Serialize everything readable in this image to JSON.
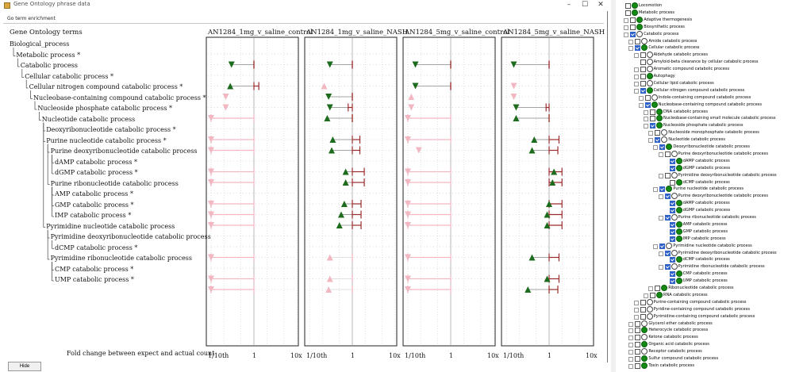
{
  "window": {
    "title": "Gene Ontology phrase data",
    "buttons": {
      "minimize": "–",
      "maximize": "☐",
      "close": "✕"
    },
    "tab_label": "Go term enrichment",
    "hide_label": "Hide"
  },
  "terms_header": "Gene Ontology terms",
  "terms": [
    {
      "label": "Biological_process",
      "level": 0
    },
    {
      "label": "Metabolic process *",
      "level": 1
    },
    {
      "label": "Catabolic process",
      "level": 2
    },
    {
      "label": "Cellular catabolic process *",
      "level": 3
    },
    {
      "label": "Cellular nitrogen compound catabolic process *",
      "level": 4
    },
    {
      "label": "Nucleobase-containing compound catabolic process *",
      "level": 5
    },
    {
      "label": "Nucleoside phosphate catabolic process *",
      "level": 6
    },
    {
      "label": "Nucleotide catabolic process",
      "level": 7
    },
    {
      "label": "Deoxyribonucleotide catabolic process *",
      "level": 8
    },
    {
      "label": "Purine nucleotide catabolic process *",
      "level": 8
    },
    {
      "label": "Purine deoxyribonucleotide catabolic process",
      "level": 9
    },
    {
      "label": "dAMP catabolic process *",
      "level": 10
    },
    {
      "label": "dGMP catabolic process *",
      "level": 10
    },
    {
      "label": "Purine ribonucleotide catabolic process",
      "level": 9
    },
    {
      "label": "AMP catabolic process *",
      "level": 10
    },
    {
      "label": "GMP catabolic process *",
      "level": 10
    },
    {
      "label": "IMP catabolic process *",
      "level": 10
    },
    {
      "label": "Pyrimidine nucleotide catabolic process",
      "level": 8
    },
    {
      "label": "Pyrimidine deoxyribonucleotide catabolic process",
      "level": 9
    },
    {
      "label": "dCMP catabolic process *",
      "level": 10
    },
    {
      "label": "Pyrimidine ribonucleotide catabolic process",
      "level": 9
    },
    {
      "label": "CMP catabolic process *",
      "level": 10
    },
    {
      "label": "UMP catabolic process *",
      "level": 10
    }
  ],
  "footer_label": "Fold change between expect and actual count",
  "axis_ticks": [
    "1/10th",
    "1",
    "10x"
  ],
  "colors": {
    "up": "#1d6b1d",
    "down": "#1d6b1d",
    "faint": "#f2b8c2",
    "whisker": "#9a2b2b",
    "whisker_faint": "#f2b8c2"
  },
  "panels": [
    {
      "title": "AN1284_1mg_v_saline_control",
      "rows": [
        {
          "row": 1,
          "dir": "down",
          "sig": true,
          "est": 0.3,
          "lo": 1.0,
          "hi": 1.0
        },
        {
          "row": 3,
          "dir": "up",
          "sig": true,
          "est": 0.28,
          "lo": 1.0,
          "hi": 1.3
        },
        {
          "row": 4,
          "dir": "down",
          "sig": false,
          "est": 0.22
        },
        {
          "row": 5,
          "dir": "down",
          "sig": false,
          "est": 0.22
        },
        {
          "row": 6,
          "dir": "down",
          "sig": false,
          "est": 0.1,
          "lo": 0.1,
          "hi": 1.0
        },
        {
          "row": 8,
          "dir": "down",
          "sig": false,
          "est": 0.1,
          "lo": 0.1,
          "hi": 1.0
        },
        {
          "row": 9,
          "dir": "down",
          "sig": false,
          "est": 0.1,
          "lo": 0.1,
          "hi": 1.0
        },
        {
          "row": 11,
          "dir": "down",
          "sig": false,
          "est": 0.1,
          "lo": 0.1,
          "hi": 1.0
        },
        {
          "row": 12,
          "dir": "down",
          "sig": false,
          "est": 0.1,
          "lo": 0.1,
          "hi": 1.0
        },
        {
          "row": 14,
          "dir": "down",
          "sig": false,
          "est": 0.1,
          "lo": 0.1,
          "hi": 1.0
        },
        {
          "row": 15,
          "dir": "down",
          "sig": false,
          "est": 0.1,
          "lo": 0.1,
          "hi": 1.0
        },
        {
          "row": 16,
          "dir": "down",
          "sig": false,
          "est": 0.1,
          "lo": 0.1,
          "hi": 1.0
        },
        {
          "row": 19,
          "dir": "down",
          "sig": false,
          "est": 0.1,
          "lo": 0.1,
          "hi": 1.0
        },
        {
          "row": 21,
          "dir": "down",
          "sig": false,
          "est": 0.1,
          "lo": 0.1,
          "hi": 1.0
        },
        {
          "row": 22,
          "dir": "down",
          "sig": false,
          "est": 0.1,
          "lo": 0.1,
          "hi": 1.0
        }
      ]
    },
    {
      "title": "AN1284_1mg_v_saline_NASH",
      "rows": [
        {
          "row": 1,
          "dir": "down",
          "sig": true,
          "est": 0.3,
          "lo": 1.0,
          "hi": 1.0
        },
        {
          "row": 3,
          "dir": "up",
          "sig": false,
          "est": 0.22
        },
        {
          "row": 4,
          "dir": "down",
          "sig": true,
          "est": 0.28,
          "lo": 1.0,
          "hi": 1.0
        },
        {
          "row": 5,
          "dir": "down",
          "sig": true,
          "est": 0.3,
          "lo": 0.8,
          "hi": 1.0
        },
        {
          "row": 6,
          "dir": "up",
          "sig": true,
          "est": 0.26,
          "lo": 1.0,
          "hi": 1.0
        },
        {
          "row": 8,
          "dir": "up",
          "sig": true,
          "est": 0.35,
          "lo": 1.0,
          "hi": 1.5
        },
        {
          "row": 9,
          "dir": "up",
          "sig": true,
          "est": 0.33,
          "lo": 1.0,
          "hi": 1.5
        },
        {
          "row": 11,
          "dir": "up",
          "sig": true,
          "est": 0.7,
          "lo": 1.0,
          "hi": 1.9
        },
        {
          "row": 12,
          "dir": "up",
          "sig": true,
          "est": 0.7,
          "lo": 1.0,
          "hi": 1.9
        },
        {
          "row": 14,
          "dir": "up",
          "sig": true,
          "est": 0.65,
          "lo": 1.0,
          "hi": 1.6
        },
        {
          "row": 15,
          "dir": "up",
          "sig": true,
          "est": 0.55,
          "lo": 1.0,
          "hi": 1.6
        },
        {
          "row": 16,
          "dir": "up",
          "sig": true,
          "est": 0.5,
          "lo": 1.0,
          "hi": 1.6
        },
        {
          "row": 19,
          "dir": "up",
          "sig": false,
          "est": 0.3,
          "lo": 1.0,
          "hi": 1.0
        },
        {
          "row": 21,
          "dir": "up",
          "sig": false,
          "est": 0.3,
          "lo": 1.0,
          "hi": 1.0
        },
        {
          "row": 22,
          "dir": "up",
          "sig": false,
          "est": 0.28,
          "lo": 1.0,
          "hi": 1.0
        }
      ]
    },
    {
      "title": "AN1284_5mg_v_saline_control",
      "rows": [
        {
          "row": 1,
          "dir": "down",
          "sig": true,
          "est": 0.15,
          "lo": 1.0,
          "hi": 1.0
        },
        {
          "row": 3,
          "dir": "down",
          "sig": true,
          "est": 0.15,
          "lo": 1.0,
          "hi": 1.0
        },
        {
          "row": 4,
          "dir": "up",
          "sig": false,
          "est": 0.12
        },
        {
          "row": 5,
          "dir": "down",
          "sig": false,
          "est": 0.12
        },
        {
          "row": 6,
          "dir": "down",
          "sig": false,
          "est": 0.1,
          "lo": 0.1,
          "hi": 1.0
        },
        {
          "row": 8,
          "dir": "down",
          "sig": false,
          "est": 0.1,
          "lo": 0.1,
          "hi": 1.0
        },
        {
          "row": 9,
          "dir": "down",
          "sig": false,
          "est": 0.18
        },
        {
          "row": 11,
          "dir": "down",
          "sig": false,
          "est": 0.1,
          "lo": 0.1,
          "hi": 1.0
        },
        {
          "row": 12,
          "dir": "down",
          "sig": false,
          "est": 0.1,
          "lo": 0.1,
          "hi": 1.0
        },
        {
          "row": 14,
          "dir": "down",
          "sig": false,
          "est": 0.1,
          "lo": 0.1,
          "hi": 1.0
        },
        {
          "row": 15,
          "dir": "down",
          "sig": false,
          "est": 0.1,
          "lo": 0.1,
          "hi": 1.0
        },
        {
          "row": 16,
          "dir": "down",
          "sig": false,
          "est": 0.1,
          "lo": 0.1,
          "hi": 1.0
        },
        {
          "row": 19,
          "dir": "down",
          "sig": false,
          "est": 0.1,
          "lo": 0.1,
          "hi": 1.0
        },
        {
          "row": 21,
          "dir": "down",
          "sig": false,
          "est": 0.1,
          "lo": 0.1,
          "hi": 1.0
        },
        {
          "row": 22,
          "dir": "down",
          "sig": false,
          "est": 0.1,
          "lo": 0.1,
          "hi": 1.0
        }
      ]
    },
    {
      "title": "AN1284_5mg_v_saline_NASH",
      "rows": [
        {
          "row": 1,
          "dir": "down",
          "sig": true,
          "est": 0.15,
          "lo": 1.0,
          "hi": 1.0
        },
        {
          "row": 3,
          "dir": "down",
          "sig": false,
          "est": 0.15
        },
        {
          "row": 4,
          "dir": "down",
          "sig": false,
          "est": 0.15
        },
        {
          "row": 5,
          "dir": "down",
          "sig": true,
          "est": 0.17,
          "lo": 0.85,
          "hi": 1.0
        },
        {
          "row": 6,
          "dir": "up",
          "sig": true,
          "est": 0.17,
          "lo": 1.0,
          "hi": 1.0
        },
        {
          "row": 8,
          "dir": "up",
          "sig": true,
          "est": 0.45,
          "lo": 1.0,
          "hi": 1.7
        },
        {
          "row": 9,
          "dir": "up",
          "sig": true,
          "est": 0.4,
          "lo": 1.0,
          "hi": 1.6
        },
        {
          "row": 11,
          "dir": "up",
          "sig": true,
          "est": 1.3,
          "lo": 1.0,
          "hi": 2.0
        },
        {
          "row": 12,
          "dir": "up",
          "sig": true,
          "est": 1.2,
          "lo": 1.0,
          "hi": 2.0
        },
        {
          "row": 14,
          "dir": "up",
          "sig": true,
          "est": 1.0,
          "lo": 1.0,
          "hi": 2.0
        },
        {
          "row": 15,
          "dir": "up",
          "sig": true,
          "est": 0.9,
          "lo": 1.0,
          "hi": 2.0
        },
        {
          "row": 16,
          "dir": "up",
          "sig": true,
          "est": 0.9,
          "lo": 1.0,
          "hi": 2.0
        },
        {
          "row": 19,
          "dir": "up",
          "sig": true,
          "est": 0.4,
          "lo": 1.0,
          "hi": 1.7
        },
        {
          "row": 21,
          "dir": "up",
          "sig": true,
          "est": 0.9,
          "lo": 1.0,
          "hi": 1.7
        },
        {
          "row": 22,
          "dir": "up",
          "sig": true,
          "est": 0.32,
          "lo": 1.0,
          "hi": 1.6
        }
      ]
    }
  ],
  "tree": [
    {
      "label": "Locomotion",
      "level": 0,
      "checked": false,
      "filled": true,
      "expander": ""
    },
    {
      "label": "Metabolic process",
      "level": 0,
      "checked": false,
      "filled": true,
      "expander": ""
    },
    {
      "label": "Adaptive thermogenesis",
      "level": 1,
      "checked": false,
      "filled": true,
      "expander": "+"
    },
    {
      "label": "Biosynthetic process",
      "level": 1,
      "checked": false,
      "filled": true,
      "expander": "+"
    },
    {
      "label": "Catabolic process",
      "level": 1,
      "checked": true,
      "filled": false,
      "expander": "-"
    },
    {
      "label": "Amide catabolic process",
      "level": 2,
      "checked": false,
      "filled": false,
      "expander": "+"
    },
    {
      "label": "Cellular catabolic process",
      "level": 2,
      "checked": true,
      "filled": true,
      "expander": "-"
    },
    {
      "label": "Aldehyde catabolic process",
      "level": 3,
      "checked": false,
      "filled": false,
      "expander": "+"
    },
    {
      "label": "Amyloid-beta clearance by cellular catabolic process",
      "level": 3,
      "checked": false,
      "filled": false,
      "expander": ""
    },
    {
      "label": "Aromatic compound catabolic process",
      "level": 3,
      "checked": false,
      "filled": false,
      "expander": "+"
    },
    {
      "label": "Autophagy",
      "level": 3,
      "checked": false,
      "filled": true,
      "expander": "+"
    },
    {
      "label": "Cellular lipid catabolic process",
      "level": 3,
      "checked": false,
      "filled": false,
      "expander": "+"
    },
    {
      "label": "Cellular nitrogen compound catabolic process",
      "level": 3,
      "checked": true,
      "filled": true,
      "expander": "-"
    },
    {
      "label": "Indole-containing compound catabolic process",
      "level": 4,
      "checked": false,
      "filled": false,
      "expander": "+"
    },
    {
      "label": "Nucleobase-containing compound catabolic process",
      "level": 4,
      "checked": true,
      "filled": true,
      "expander": "-"
    },
    {
      "label": "DNA catabolic process",
      "level": 5,
      "checked": false,
      "filled": true,
      "expander": "+"
    },
    {
      "label": "Nucleobase-containing small molecule catabolic process",
      "level": 5,
      "checked": false,
      "filled": true,
      "expander": "+"
    },
    {
      "label": "Nucleoside phosphate catabolic process",
      "level": 5,
      "checked": true,
      "filled": true,
      "expander": "-"
    },
    {
      "label": "Nucleoside monophosphate catabolic process",
      "level": 6,
      "checked": false,
      "filled": false,
      "expander": "+"
    },
    {
      "label": "Nucleotide catabolic process",
      "level": 6,
      "checked": true,
      "filled": false,
      "expander": "-"
    },
    {
      "label": "Deoxyribonucleotide catabolic process",
      "level": 7,
      "checked": true,
      "filled": true,
      "expander": "-"
    },
    {
      "label": "Purine deoxyribonucleotide catabolic process",
      "level": 8,
      "checked": false,
      "filled": false,
      "expander": "-"
    },
    {
      "label": "dAMP catabolic process",
      "level": 9,
      "checked": true,
      "filled": true,
      "expander": ""
    },
    {
      "label": "dGMP catabolic process",
      "level": 9,
      "checked": true,
      "filled": true,
      "expander": ""
    },
    {
      "label": "Pyrimidine deoxyribonucleotide catabolic process",
      "level": 8,
      "checked": false,
      "filled": false,
      "expander": "-"
    },
    {
      "label": "dCMP catabolic process",
      "level": 9,
      "checked": false,
      "filled": true,
      "expander": ""
    },
    {
      "label": "Purine nucleotide catabolic process",
      "level": 7,
      "checked": true,
      "filled": true,
      "expander": "-"
    },
    {
      "label": "Purine deoxyribonucleotide catabolic process",
      "level": 8,
      "checked": true,
      "filled": false,
      "expander": "-"
    },
    {
      "label": "dAMP catabolic process",
      "level": 9,
      "checked": true,
      "filled": true,
      "expander": ""
    },
    {
      "label": "dGMP catabolic process",
      "level": 9,
      "checked": true,
      "filled": true,
      "expander": ""
    },
    {
      "label": "Purine ribonucleotide catabolic process",
      "level": 8,
      "checked": true,
      "filled": false,
      "expander": "-"
    },
    {
      "label": "AMP catabolic process",
      "level": 9,
      "checked": true,
      "filled": true,
      "expander": ""
    },
    {
      "label": "GMP catabolic process",
      "level": 9,
      "checked": true,
      "filled": true,
      "expander": ""
    },
    {
      "label": "IMP catabolic process",
      "level": 9,
      "checked": true,
      "filled": true,
      "expander": ""
    },
    {
      "label": "Pyrimidine nucleotide catabolic process",
      "level": 7,
      "checked": true,
      "filled": false,
      "expander": "-"
    },
    {
      "label": "Pyrimidine deoxyribonucleotide catabolic process",
      "level": 8,
      "checked": true,
      "filled": false,
      "expander": "-"
    },
    {
      "label": "dCMP catabolic process",
      "level": 9,
      "checked": true,
      "filled": true,
      "expander": ""
    },
    {
      "label": "Pyrimidine ribonucleotide catabolic process",
      "level": 8,
      "checked": true,
      "filled": false,
      "expander": "-"
    },
    {
      "label": "CMP catabolic process",
      "level": 9,
      "checked": true,
      "filled": true,
      "expander": ""
    },
    {
      "label": "UMP catabolic process",
      "level": 9,
      "checked": true,
      "filled": true,
      "expander": ""
    },
    {
      "label": "Ribonucleotide catabolic process",
      "level": 6,
      "checked": false,
      "filled": true,
      "expander": "+"
    },
    {
      "label": "RNA catabolic process",
      "level": 5,
      "checked": false,
      "filled": true,
      "expander": "+"
    },
    {
      "label": "Purine-containing compound catabolic process",
      "level": 3,
      "checked": false,
      "filled": false,
      "expander": "+"
    },
    {
      "label": "Pyridine-containing compound catabolic process",
      "level": 3,
      "checked": false,
      "filled": false,
      "expander": "+"
    },
    {
      "label": "Pyrimidine-containing compound catabolic process",
      "level": 3,
      "checked": false,
      "filled": false,
      "expander": "+"
    },
    {
      "label": "Glycerol ether catabolic process",
      "level": 2,
      "checked": false,
      "filled": false,
      "expander": "+"
    },
    {
      "label": "Heterocycle catabolic process",
      "level": 2,
      "checked": false,
      "filled": true,
      "expander": "+"
    },
    {
      "label": "Ketone catabolic process",
      "level": 2,
      "checked": false,
      "filled": false,
      "expander": "+"
    },
    {
      "label": "Organic acid catabolic process",
      "level": 2,
      "checked": false,
      "filled": true,
      "expander": "+"
    },
    {
      "label": "Receptor catabolic process",
      "level": 2,
      "checked": false,
      "filled": false,
      "expander": "+"
    },
    {
      "label": "Sulfur compound catabolic process",
      "level": 2,
      "checked": false,
      "filled": true,
      "expander": "+"
    },
    {
      "label": "Toxin catabolic process",
      "level": 2,
      "checked": false,
      "filled": true,
      "expander": "+"
    }
  ]
}
